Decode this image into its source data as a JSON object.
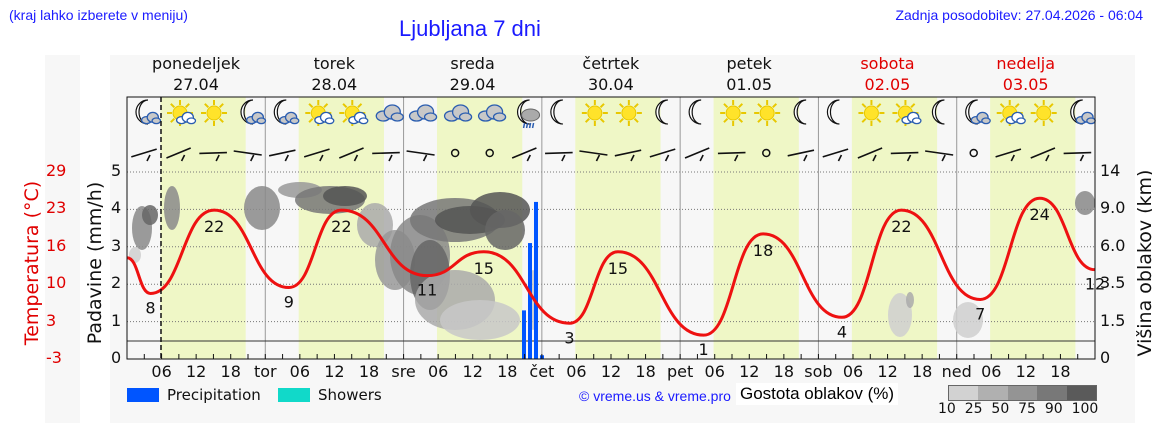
{
  "header": {
    "location_hint": "(kraj lahko izberete v meniju)",
    "title": "Ljubljana 7 dni",
    "last_update": "Zadnja posodobitev: 27.04.2026 - 06:04"
  },
  "days": [
    {
      "name": "ponedeljek",
      "date": "27.04",
      "weekend": false,
      "short": ""
    },
    {
      "name": "torek",
      "date": "28.04",
      "weekend": false,
      "short": "tor"
    },
    {
      "name": "sreda",
      "date": "29.04",
      "weekend": false,
      "short": "sre"
    },
    {
      "name": "četrtek",
      "date": "30.04",
      "weekend": false,
      "short": "čet"
    },
    {
      "name": "petek",
      "date": "01.05",
      "weekend": false,
      "short": "pet"
    },
    {
      "name": "sobota",
      "date": "02.05",
      "weekend": true,
      "short": "sob"
    },
    {
      "name": "nedelja",
      "date": "03.05",
      "weekend": true,
      "short": "ned"
    }
  ],
  "hour_ticks": [
    "06",
    "12",
    "18"
  ],
  "weather_icons": [
    [
      "moon-cloud-icon",
      "sun-cloud-icon",
      "sun-icon",
      "moon-cloud-icon"
    ],
    [
      "moon-cloud-icon",
      "sun-cloud-icon",
      "sun-cloud-icon",
      "cloud-icon"
    ],
    [
      "cloud-icon",
      "cloud-icon",
      "cloud-icon",
      "moon-rain-icon"
    ],
    [
      "moon-icon",
      "sun-icon",
      "sun-icon",
      "moon-icon"
    ],
    [
      "moon-icon",
      "sun-icon",
      "sun-icon",
      "moon-icon"
    ],
    [
      "moon-icon",
      "sun-icon",
      "sun-cloud-icon",
      "moon-icon"
    ],
    [
      "moon-cloud-icon",
      "sun-cloud-icon",
      "sun-icon",
      "moon-cloud-icon"
    ]
  ],
  "axes": {
    "temperature_label": "Temperatura (°C)",
    "temperature_ticks": [
      "29",
      "23",
      "16",
      "10",
      "3",
      "-3"
    ],
    "precip_label": "Padavine (mm/h)",
    "precip_ticks": [
      "5",
      "4",
      "3",
      "2",
      "1",
      "0"
    ],
    "cloud_height_label": "Višina oblakov (km)",
    "cloud_height_ticks": [
      "14",
      "9.0",
      "6.0",
      "3.5",
      "1.5",
      "0"
    ]
  },
  "legend": {
    "precipitation": "Precipitation",
    "showers": "Showers",
    "precipitation_color": "#0055ff",
    "showers_color": "#11d9c9",
    "copyright": "© vreme.us & vreme.pro",
    "cloud_density_label": "Gostota oblakov (%)",
    "cloud_density_ticks": [
      "10",
      "25",
      "50",
      "75",
      "90",
      "100"
    ],
    "cloud_density_colors": [
      "#d2d2d2",
      "#b0b0b0",
      "#949494",
      "#787878",
      "#5a5a5a"
    ]
  },
  "colors": {
    "temperature_line": "#ee1111",
    "daytime_band": "#eff7c6",
    "night_band": "#f7f7f7",
    "accent_blue": "#1a1aff",
    "weekend_red": "#e00000"
  },
  "chart_data": {
    "type": "line",
    "title": "Ljubljana 7 dni",
    "xlabel": "",
    "ylabel": "Temperatura (°C)",
    "ylabel_left_secondary": "Padavine (mm/h)",
    "ylabel_right": "Višina oblakov (km)",
    "ylim": [
      -3,
      29
    ],
    "grid": true,
    "x": [
      "Mon 06",
      "Mon 14",
      "Tue 04",
      "Tue 13",
      "Wed 05",
      "Wed 15",
      "Thu 05",
      "Thu 14",
      "Fri 04",
      "Fri 15",
      "Sat 04",
      "Sat 15",
      "Sun 04",
      "Sun 15",
      "Mon 00"
    ],
    "series": [
      {
        "name": "Temperature (°C)",
        "values": [
          8,
          22,
          9,
          22,
          11,
          15,
          3,
          15,
          1,
          18,
          4,
          22,
          7,
          24,
          12
        ]
      },
      {
        "name": "Precipitation (mm/h)",
        "x": [
          "Wed 21",
          "Wed 22",
          "Wed 23",
          "Thu 00"
        ],
        "values": [
          1.3,
          3.1,
          4.2,
          0.1
        ]
      }
    ],
    "extrema_labels": [
      {
        "label": "8",
        "day": "ponedeljek"
      },
      {
        "label": "22",
        "day": "ponedeljek"
      },
      {
        "label": "9",
        "day": "torek"
      },
      {
        "label": "22",
        "day": "torek"
      },
      {
        "label": "11",
        "day": "sreda"
      },
      {
        "label": "15",
        "day": "sreda"
      },
      {
        "label": "3",
        "day": "četrtek"
      },
      {
        "label": "15",
        "day": "četrtek"
      },
      {
        "label": "1",
        "day": "petek"
      },
      {
        "label": "18",
        "day": "petek"
      },
      {
        "label": "4",
        "day": "sobota"
      },
      {
        "label": "22",
        "day": "sobota"
      },
      {
        "label": "7",
        "day": "nedelja"
      },
      {
        "label": "24",
        "day": "nedelja"
      },
      {
        "label": "12",
        "day": "end"
      }
    ],
    "legend": [
      "Precipitation",
      "Showers"
    ],
    "legend_position": "bottom"
  }
}
